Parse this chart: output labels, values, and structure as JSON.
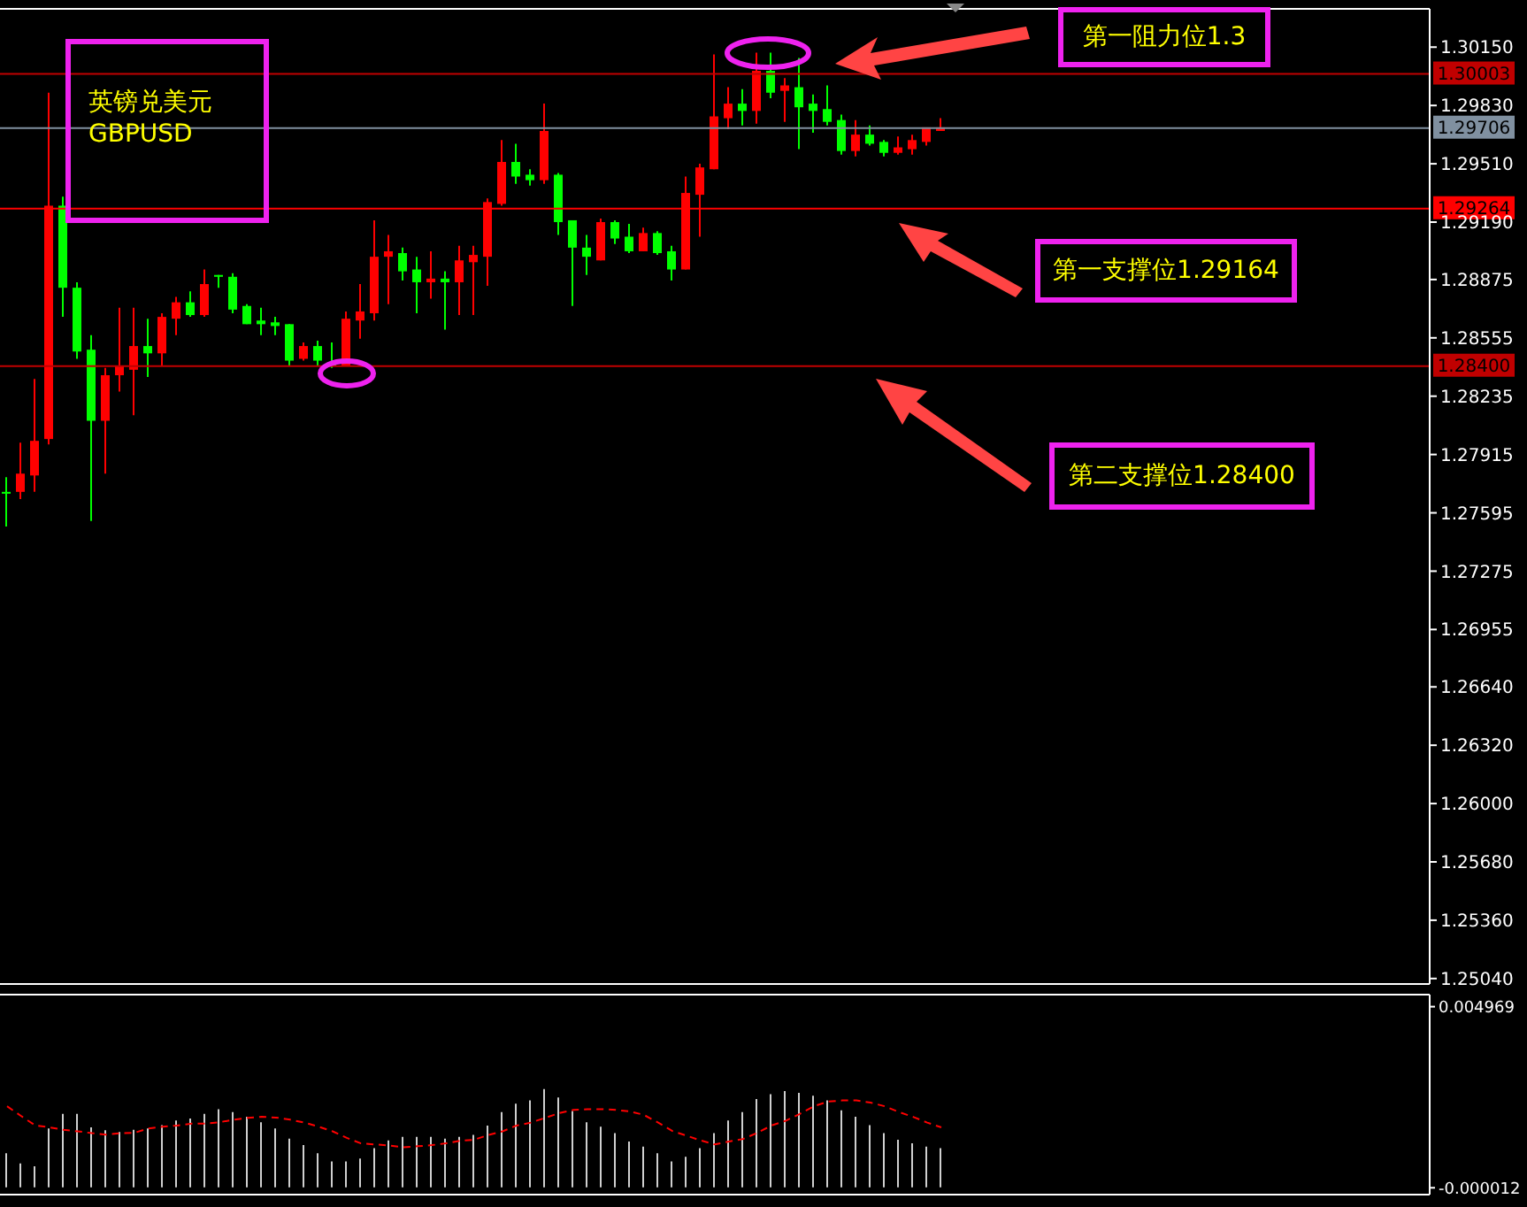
{
  "chart_data": [
    {
      "type": "candlestick",
      "categories": [
        null,
        null,
        null,
        null,
        null,
        null,
        null,
        null,
        null,
        null,
        null,
        null,
        null,
        null,
        null,
        null,
        null,
        null,
        null,
        null,
        null,
        null,
        null,
        null,
        null,
        null,
        null,
        null,
        null,
        null,
        null,
        null,
        null,
        null,
        null,
        null,
        null,
        null,
        null,
        null,
        null,
        null,
        null,
        null,
        null,
        null,
        null,
        null,
        null,
        null,
        null,
        null,
        null,
        null,
        null,
        null,
        null,
        null,
        null,
        null,
        null,
        null,
        null,
        null,
        null,
        null,
        null,
        null,
        null,
        null,
        null,
        null,
        null,
        null,
        null,
        null,
        null,
        null,
        null,
        null,
        null,
        null,
        null,
        null,
        null,
        null,
        null,
        null,
        null,
        null,
        null,
        null,
        null,
        null,
        null,
        null,
        null,
        null,
        null,
        null,
        null
      ],
      "ohlc": [
        [
          1.2771,
          1.2779,
          1.2752,
          1.277
        ],
        [
          1.2771,
          1.2798,
          1.2767,
          1.2781
        ],
        [
          1.278,
          1.2833,
          1.2771,
          1.2799
        ],
        [
          1.28,
          1.299,
          1.2797,
          1.2928
        ],
        [
          1.2928,
          1.2933,
          1.2867,
          1.2883
        ],
        [
          1.2883,
          1.2886,
          1.2844,
          1.2848
        ],
        [
          1.2849,
          1.2857,
          1.2755,
          1.281
        ],
        [
          1.281,
          1.2839,
          1.2781,
          1.2835
        ],
        [
          1.2835,
          1.2872,
          1.2826,
          1.284
        ],
        [
          1.2838,
          1.2872,
          1.2813,
          1.2851
        ],
        [
          1.2851,
          1.2866,
          1.2834,
          1.2847
        ],
        [
          1.2847,
          1.2869,
          1.284,
          1.2867
        ],
        [
          1.2866,
          1.2878,
          1.2857,
          1.2875
        ],
        [
          1.2875,
          1.2881,
          1.2867,
          1.2868
        ],
        [
          1.2868,
          1.2893,
          1.2867,
          1.2885
        ],
        [
          1.289,
          1.289,
          1.2883,
          1.2889
        ],
        [
          1.2889,
          1.2891,
          1.2869,
          1.2871
        ],
        [
          1.2873,
          1.2874,
          1.2863,
          1.2863
        ],
        [
          1.2865,
          1.2872,
          1.2857,
          1.2863
        ],
        [
          1.2864,
          1.2867,
          1.2857,
          1.2862
        ],
        [
          1.2863,
          1.2863,
          1.284,
          1.2843
        ],
        [
          1.2844,
          1.2853,
          1.2843,
          1.2851
        ],
        [
          1.2851,
          1.2854,
          1.284,
          1.2843
        ],
        [
          1.2841,
          1.2853,
          1.2839,
          1.284
        ],
        [
          1.284,
          1.287,
          1.284,
          1.2866
        ],
        [
          1.2865,
          1.2885,
          1.2855,
          1.287
        ],
        [
          1.2869,
          1.292,
          1.2865,
          1.29
        ],
        [
          1.29,
          1.2912,
          1.2874,
          1.2903
        ],
        [
          1.2902,
          1.2905,
          1.2887,
          1.2892
        ],
        [
          1.2893,
          1.29,
          1.2869,
          1.2886
        ],
        [
          1.2886,
          1.2903,
          1.2877,
          1.2888
        ],
        [
          1.2888,
          1.2892,
          1.286,
          1.2886
        ],
        [
          1.2886,
          1.2906,
          1.2868,
          1.2898
        ],
        [
          1.2897,
          1.2906,
          1.2868,
          1.2901
        ],
        [
          1.29,
          1.2932,
          1.2884,
          1.293
        ],
        [
          1.2929,
          1.2964,
          1.2928,
          1.2952
        ],
        [
          1.2952,
          1.2962,
          1.294,
          1.2944
        ],
        [
          1.2945,
          1.2948,
          1.2939,
          1.2942
        ],
        [
          1.2942,
          1.2984,
          1.294,
          1.2969
        ],
        [
          1.2945,
          1.2946,
          1.2912,
          1.2919
        ],
        [
          1.292,
          1.292,
          1.2873,
          1.2905
        ],
        [
          1.2905,
          1.2912,
          1.289,
          1.29
        ],
        [
          1.2898,
          1.2921,
          1.2898,
          1.2919
        ],
        [
          1.2919,
          1.292,
          1.2907,
          1.291
        ],
        [
          1.2911,
          1.2918,
          1.2902,
          1.2903
        ],
        [
          1.2903,
          1.2916,
          1.2903,
          1.2913
        ],
        [
          1.2913,
          1.2914,
          1.2901,
          1.2902
        ],
        [
          1.2903,
          1.2906,
          1.2887,
          1.2893
        ],
        [
          1.2893,
          1.2944,
          1.2893,
          1.2935
        ],
        [
          1.2934,
          1.2951,
          1.2911,
          1.2949
        ],
        [
          1.2948,
          1.3011,
          1.2948,
          1.2977
        ],
        [
          1.2976,
          1.2993,
          1.297,
          1.2984
        ],
        [
          1.2984,
          1.2992,
          1.2972,
          1.298
        ],
        [
          1.298,
          1.3012,
          1.2973,
          1.3002
        ],
        [
          1.3002,
          1.3012,
          1.2987,
          1.299
        ],
        [
          1.2991,
          1.2998,
          1.2974,
          1.2994
        ],
        [
          1.2993,
          1.3009,
          1.2959,
          1.2982
        ],
        [
          1.2984,
          1.2989,
          1.2968,
          1.298
        ],
        [
          1.2981,
          1.2994,
          1.2972,
          1.2974
        ],
        [
          1.2975,
          1.2978,
          1.2956,
          1.2958
        ],
        [
          1.2958,
          1.2975,
          1.2955,
          1.2967
        ],
        [
          1.2967,
          1.2972,
          1.2961,
          1.2962
        ],
        [
          1.2963,
          1.2964,
          1.2955,
          1.2957
        ],
        [
          1.2957,
          1.2966,
          1.2956,
          1.296
        ],
        [
          1.2959,
          1.2967,
          1.2956,
          1.2964
        ],
        [
          1.2963,
          1.2971,
          1.2961,
          1.2971
        ],
        [
          1.2969,
          1.2976,
          1.2969,
          1.2971
        ],
        null,
        null,
        null,
        null,
        null,
        null,
        null,
        null,
        null,
        null,
        null,
        null,
        null,
        null,
        null,
        null,
        null,
        null,
        null,
        null,
        null,
        null,
        null,
        null,
        null,
        null,
        null,
        null,
        null,
        null,
        null,
        null,
        null,
        null
      ],
      "colors": [
        "#00ff00",
        "#ff0000",
        "#ff0000",
        "#ff0000",
        "#00ff00",
        "#00ff00",
        "#00ff00",
        "#ff0000",
        "#ff0000",
        "#ff0000",
        "#00ff00",
        "#ff0000",
        "#ff0000",
        "#00ff00",
        "#ff0000",
        "#00ff00",
        "#00ff00",
        "#00ff00",
        "#00ff00",
        "#00ff00",
        "#00ff00",
        "#ff0000",
        "#00ff00",
        "#00ff00",
        "#ff0000",
        "#ff0000",
        "#ff0000",
        "#ff0000",
        "#00ff00",
        "#00ff00",
        "#ff0000",
        "#00ff00",
        "#ff0000",
        "#ff0000",
        "#ff0000",
        "#ff0000",
        "#00ff00",
        "#00ff00",
        "#ff0000",
        "#00ff00",
        "#00ff00",
        "#00ff00",
        "#ff0000",
        "#00ff00",
        "#00ff00",
        "#ff0000",
        "#00ff00",
        "#00ff00",
        "#ff0000",
        "#ff0000",
        "#ff0000",
        "#ff0000",
        "#00ff00",
        "#ff0000",
        "#00ff00",
        "#ff0000",
        "#00ff00",
        "#00ff00",
        "#00ff00",
        "#00ff00",
        "#ff0000",
        "#00ff00",
        "#00ff00",
        "#ff0000",
        "#ff0000",
        "#ff0000",
        "#ff0000",
        null,
        null,
        null,
        null,
        null,
        null,
        null,
        null,
        null,
        null,
        null,
        null,
        null,
        null,
        null,
        null,
        null,
        null,
        null,
        null,
        null,
        null,
        null,
        null,
        null,
        null,
        null,
        null,
        null,
        null,
        null,
        null,
        null,
        null
      ],
      "ylim": [
        1.2501,
        1.3036
      ],
      "yticks": [
        {
          "value": 1.3015,
          "label": "1.30150"
        },
        {
          "value": 1.2983,
          "label": "1.29830"
        },
        {
          "value": 1.2951,
          "label": "1.29510"
        },
        {
          "value": 1.2919,
          "label": "1.29190"
        },
        {
          "value": 1.28875,
          "label": "1.28875"
        },
        {
          "value": 1.28555,
          "label": "1.28555"
        },
        {
          "value": 1.28235,
          "label": "1.28235"
        },
        {
          "value": 1.27915,
          "label": "1.27915"
        },
        {
          "value": 1.27595,
          "label": "1.27595"
        },
        {
          "value": 1.27275,
          "label": "1.27275"
        },
        {
          "value": 1.26955,
          "label": "1.26955"
        },
        {
          "value": 1.2664,
          "label": "1.26640"
        },
        {
          "value": 1.2632,
          "label": "1.26320"
        },
        {
          "value": 1.26,
          "label": "1.26000"
        },
        {
          "value": 1.2568,
          "label": "1.25680"
        },
        {
          "value": 1.2536,
          "label": "1.25360"
        },
        {
          "value": 1.2504,
          "label": "1.25040"
        }
      ],
      "ref_lines": [
        {
          "axis": "y",
          "value": 1.30003,
          "label": "1.30003",
          "color": "#c00000"
        },
        {
          "axis": "y",
          "value": 1.29706,
          "label": "1.29706",
          "color": "#8090a0"
        },
        {
          "axis": "y",
          "value": 1.29264,
          "label": "1.29264",
          "color": "#ff0000"
        },
        {
          "axis": "y",
          "value": 1.284,
          "label": "1.28400",
          "color": "#c00000"
        }
      ],
      "annotations": [
        "英镑兑美元",
        "GBPUSD",
        "第一阻力位1.3",
        "第一支撑位1.29164",
        "第二支撑位1.28400"
      ],
      "tick_labels": "y"
    },
    {
      "type": "bar",
      "categories": [
        null,
        null,
        null,
        null,
        null,
        null,
        null,
        null,
        null,
        null,
        null,
        null,
        null,
        null,
        null,
        null,
        null,
        null,
        null,
        null,
        null,
        null,
        null,
        null,
        null,
        null,
        null,
        null,
        null,
        null,
        null,
        null,
        null,
        null,
        null,
        null,
        null,
        null,
        null,
        null,
        null,
        null,
        null,
        null,
        null,
        null,
        null,
        null,
        null,
        null,
        null,
        null,
        null,
        null,
        null,
        null,
        null,
        null,
        null,
        null,
        null,
        null,
        null,
        null,
        null,
        null,
        null,
        null,
        null,
        null,
        null,
        null,
        null,
        null,
        null,
        null,
        null,
        null,
        null,
        null,
        null,
        null,
        null,
        null,
        null,
        null,
        null,
        null,
        null,
        null,
        null,
        null,
        null,
        null,
        null,
        null,
        null,
        null,
        null,
        null,
        null
      ],
      "series": [
        {
          "type": "bar",
          "color": "#d0d0d0",
          "values": [
            0.00094,
            0.00066,
            0.00058,
            0.00162,
            0.00202,
            0.00202,
            0.00165,
            0.00157,
            0.00152,
            0.00158,
            0.00162,
            0.00171,
            0.00184,
            0.00189,
            0.00202,
            0.00215,
            0.00207,
            0.00194,
            0.00179,
            0.00162,
            0.00134,
            0.00116,
            0.00094,
            0.00071,
            0.00071,
            0.00079,
            0.00108,
            0.00129,
            0.00139,
            0.00139,
            0.00139,
            0.00134,
            0.00139,
            0.00144,
            0.0017,
            0.00207,
            0.0023,
            0.00239,
            0.0027,
            0.00247,
            0.0021,
            0.00179,
            0.00167,
            0.00149,
            0.00126,
            0.00112,
            0.00094,
            0.00071,
            0.00084,
            0.00108,
            0.00149,
            0.00184,
            0.00207,
            0.00243,
            0.00256,
            0.00265,
            0.0026,
            0.00252,
            0.00239,
            0.00212,
            0.00194,
            0.00171,
            0.00149,
            0.00131,
            0.00121,
            0.00112,
            0.00108,
            null,
            null,
            null,
            null,
            null,
            null,
            null,
            null,
            null,
            null,
            null,
            null,
            null,
            null,
            null,
            null,
            null,
            null,
            null,
            null,
            null,
            null,
            null,
            null,
            null,
            null,
            null,
            null,
            null,
            null,
            null,
            null,
            null,
            null
          ]
        },
        {
          "type": "line",
          "color": "#ff0000",
          "line_style": "dashed",
          "marker": "none",
          "values": [
            0.00223,
            0.00196,
            0.0017,
            0.00165,
            0.00158,
            0.00154,
            0.00149,
            0.00145,
            0.00149,
            0.0015,
            0.00162,
            0.00167,
            0.0017,
            0.00175,
            0.00175,
            0.00179,
            0.00186,
            0.00191,
            0.00194,
            0.00192,
            0.00186,
            0.00178,
            0.00167,
            0.00154,
            0.00136,
            0.00121,
            0.00118,
            0.00115,
            0.0011,
            0.00113,
            0.00116,
            0.00121,
            0.00128,
            0.00131,
            0.00144,
            0.00154,
            0.0017,
            0.00178,
            0.00191,
            0.00204,
            0.00213,
            0.00215,
            0.00215,
            0.00213,
            0.00209,
            0.00199,
            0.00178,
            0.00155,
            0.00142,
            0.00129,
            0.00118,
            0.00126,
            0.00133,
            0.0015,
            0.0017,
            0.00183,
            0.00202,
            0.00223,
            0.00236,
            0.00239,
            0.00239,
            0.00233,
            0.00223,
            0.00207,
            0.00194,
            0.00178,
            0.00165,
            null,
            null,
            null,
            null,
            null,
            null,
            null,
            null,
            null,
            null,
            null,
            null,
            null,
            null,
            null,
            null,
            null,
            null,
            null,
            null,
            null,
            null,
            null,
            null,
            null,
            null,
            null,
            null,
            null,
            null,
            null,
            null,
            null,
            null
          ]
        }
      ],
      "ylim": [
        -0.0002,
        0.0053
      ],
      "yticks": [
        0.004969,
        {
          "value": -1.2e-05,
          "label": "-0.000012"
        }
      ],
      "tick_labels": "y"
    }
  ]
}
